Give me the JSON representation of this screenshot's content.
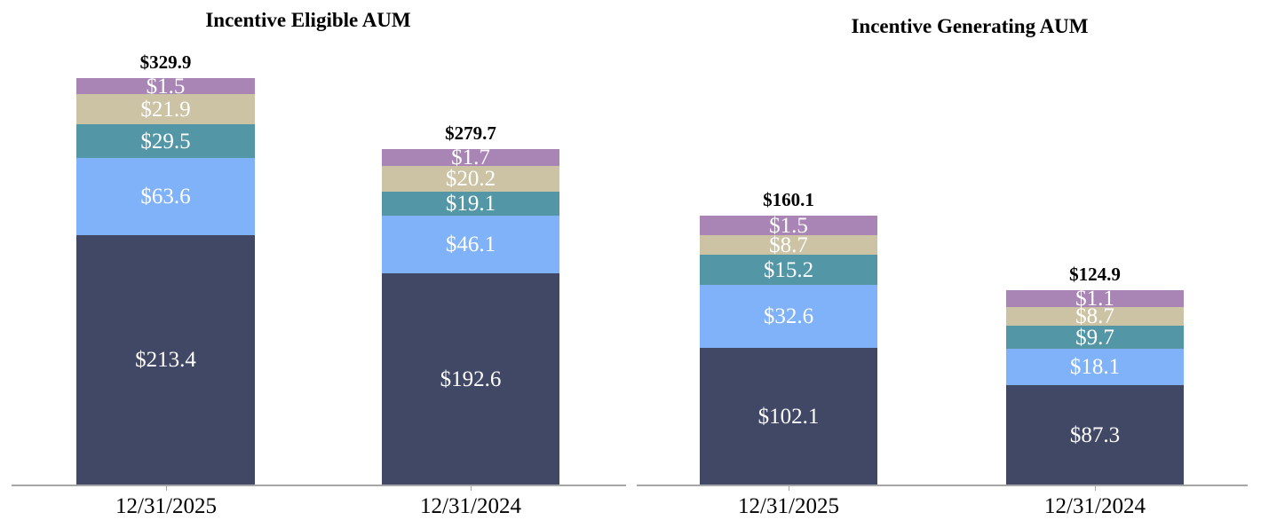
{
  "chart_data": [
    {
      "type": "bar",
      "subtype": "stacked-column",
      "title": "Incentive Eligible AUM",
      "categories": [
        "12/31/2025",
        "12/31/2024"
      ],
      "layout_hints": {
        "gridlines": false,
        "y_axis": "hidden",
        "legend": "none",
        "value_labels": "inside-segments",
        "total_labels": "above-bars"
      },
      "bars": [
        {
          "category": "12/31/2025",
          "total": 329.9,
          "total_label": "$329.9",
          "segments": [
            {
              "value": 213.4,
              "label": "$213.4",
              "color": "#414866"
            },
            {
              "value": 63.6,
              "label": "$63.6",
              "color": "#7fb2f8"
            },
            {
              "value": 29.5,
              "label": "$29.5",
              "color": "#5396a6"
            },
            {
              "value": 21.9,
              "label": "$21.9",
              "color": "#ccc3a4"
            },
            {
              "value": 1.5,
              "label": "$1.5",
              "color": "#a985b5"
            }
          ]
        },
        {
          "category": "12/31/2024",
          "total": 279.7,
          "total_label": "$279.7",
          "segments": [
            {
              "value": 192.6,
              "label": "$192.6",
              "color": "#414866"
            },
            {
              "value": 46.1,
              "label": "$46.1",
              "color": "#7fb2f8"
            },
            {
              "value": 19.1,
              "label": "$19.1",
              "color": "#5396a6"
            },
            {
              "value": 20.2,
              "label": "$20.2",
              "color": "#ccc3a4"
            },
            {
              "value": 1.7,
              "label": "$1.7",
              "color": "#a985b5"
            }
          ]
        }
      ]
    },
    {
      "type": "bar",
      "subtype": "stacked-column",
      "title": "Incentive Generating AUM",
      "categories": [
        "12/31/2025",
        "12/31/2024"
      ],
      "layout_hints": {
        "gridlines": false,
        "y_axis": "hidden",
        "legend": "none",
        "value_labels": "inside-segments",
        "total_labels": "above-bars"
      },
      "bars": [
        {
          "category": "12/31/2025",
          "total": 160.1,
          "total_label": "$160.1",
          "segments": [
            {
              "value": 102.1,
              "label": "$102.1",
              "color": "#414866"
            },
            {
              "value": 32.6,
              "label": "$32.6",
              "color": "#7fb2f8"
            },
            {
              "value": 15.2,
              "label": "$15.2",
              "color": "#5396a6"
            },
            {
              "value": 8.7,
              "label": "$8.7",
              "color": "#ccc3a4"
            },
            {
              "value": 1.5,
              "label": "$1.5",
              "color": "#a985b5"
            }
          ]
        },
        {
          "category": "12/31/2024",
          "total": 124.9,
          "total_label": "$124.9",
          "segments": [
            {
              "value": 87.3,
              "label": "$87.3",
              "color": "#414866"
            },
            {
              "value": 18.1,
              "label": "$18.1",
              "color": "#7fb2f8"
            },
            {
              "value": 9.7,
              "label": "$9.7",
              "color": "#5396a6"
            },
            {
              "value": 8.7,
              "label": "$8.7",
              "color": "#ccc3a4"
            },
            {
              "value": 1.1,
              "label": "$1.1",
              "color": "#a985b5"
            }
          ]
        }
      ]
    }
  ],
  "colors": {
    "axis": "#a6a6a6",
    "segment_navy": "#414866",
    "segment_blue": "#7fb2f8",
    "segment_teal": "#5396a6",
    "segment_tan": "#ccc3a4",
    "segment_purple": "#a985b5",
    "background": "#ffffff"
  }
}
